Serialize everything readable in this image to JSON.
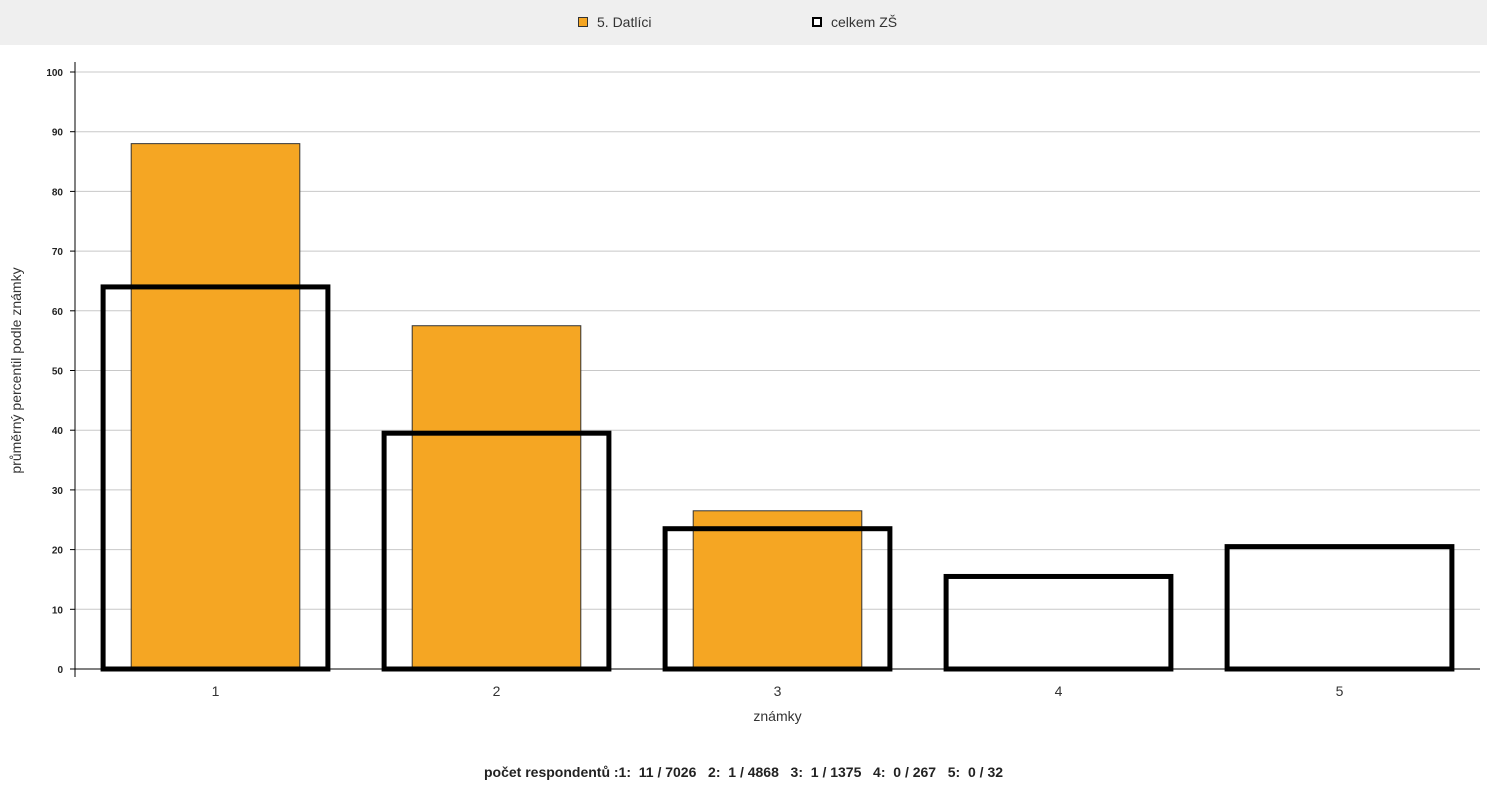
{
  "chart_data": {
    "type": "bar",
    "categories": [
      "1",
      "2",
      "3",
      "4",
      "5"
    ],
    "series": [
      {
        "name": "5. Datlíci",
        "values": [
          88,
          57.5,
          26.5,
          0,
          0
        ],
        "color": "#f5a623",
        "style": "filled"
      },
      {
        "name": "celkem ZŠ",
        "values": [
          64,
          39.5,
          23.5,
          15.5,
          20.5
        ],
        "color": "#000000",
        "style": "outline"
      }
    ],
    "xlabel": "známky",
    "ylabel": "průměrný percentil podle známky",
    "ylim": [
      0,
      100
    ],
    "yticks": [
      0,
      10,
      20,
      30,
      40,
      50,
      60,
      70,
      80,
      90,
      100
    ],
    "grid": true,
    "legend_position": "top-center"
  },
  "footer": {
    "text": "počet respondentů :1:  11 / 7026   2:  1 / 4868   3:  1 / 1375   4:  0 / 267   5:  0 / 32"
  }
}
